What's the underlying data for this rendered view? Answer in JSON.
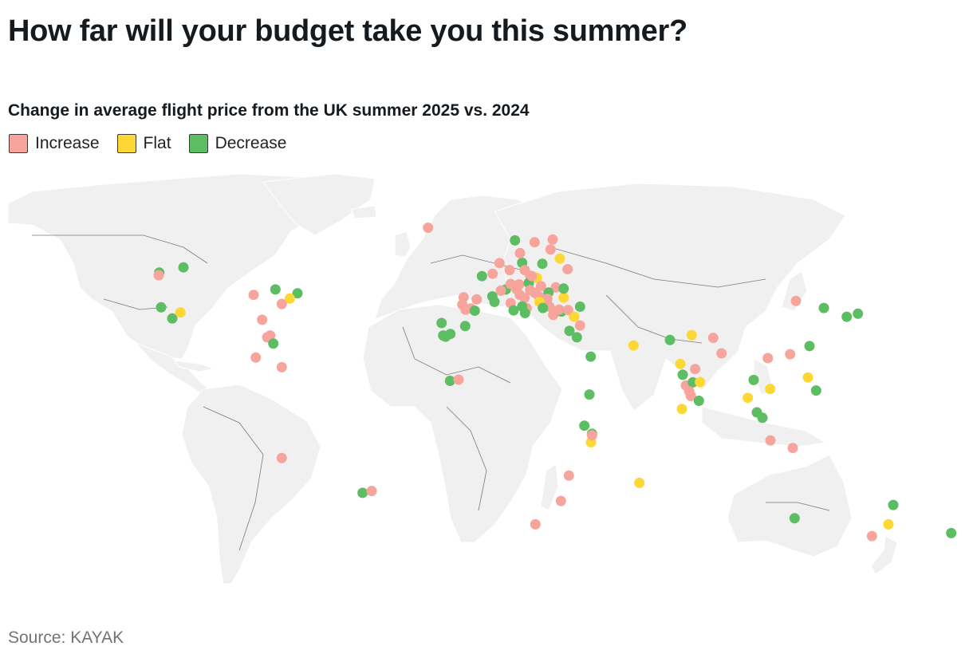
{
  "title": "How far will your budget take you this summer?",
  "subtitle": "Change in average flight price from the UK summer 2025 vs. 2024",
  "legend": [
    {
      "label": "Increase",
      "key": "increase",
      "color": "#f7a59c"
    },
    {
      "label": "Flat",
      "key": "flat",
      "color": "#fdd835"
    },
    {
      "label": "Decrease",
      "key": "decrease",
      "color": "#5cbd62"
    }
  ],
  "source": "Source: KAYAK",
  "map_data": {
    "projection": "equirectangular",
    "lon_range": [
      -180,
      180
    ],
    "lat_range": [
      -57,
      84
    ],
    "destinations": [
      {
        "lon": -22,
        "lat": 64.1,
        "change": "increase"
      },
      {
        "lon": -123.1,
        "lat": 49.3,
        "change": "decrease"
      },
      {
        "lon": -123.3,
        "lat": 48.4,
        "change": "increase"
      },
      {
        "lon": -114,
        "lat": 51,
        "change": "decrease"
      },
      {
        "lon": -122.4,
        "lat": 37.8,
        "change": "decrease"
      },
      {
        "lon": -118.2,
        "lat": 34.1,
        "change": "decrease"
      },
      {
        "lon": -115.1,
        "lat": 36.1,
        "change": "flat"
      },
      {
        "lon": -87.6,
        "lat": 41.9,
        "change": "increase"
      },
      {
        "lon": -79.4,
        "lat": 43.7,
        "change": "decrease"
      },
      {
        "lon": -71.1,
        "lat": 42.4,
        "change": "decrease"
      },
      {
        "lon": -74,
        "lat": 40.7,
        "change": "flat"
      },
      {
        "lon": -77,
        "lat": 38.9,
        "change": "increase"
      },
      {
        "lon": -84.4,
        "lat": 33.7,
        "change": "increase"
      },
      {
        "lon": -81.4,
        "lat": 28.5,
        "change": "increase"
      },
      {
        "lon": -82.5,
        "lat": 27.9,
        "change": "increase"
      },
      {
        "lon": -80.2,
        "lat": 25.8,
        "change": "decrease"
      },
      {
        "lon": -86.8,
        "lat": 21.2,
        "change": "increase"
      },
      {
        "lon": -77,
        "lat": 18,
        "change": "increase"
      },
      {
        "lon": -77,
        "lat": -12,
        "change": "increase"
      },
      {
        "lon": -46.6,
        "lat": -23.5,
        "change": "decrease"
      },
      {
        "lon": -43.2,
        "lat": -22.9,
        "change": "increase"
      },
      {
        "lon": -9.1,
        "lat": 38.7,
        "change": "increase"
      },
      {
        "lon": -8.6,
        "lat": 41.1,
        "change": "increase"
      },
      {
        "lon": -3.7,
        "lat": 40.4,
        "change": "increase"
      },
      {
        "lon": 2.2,
        "lat": 41.4,
        "change": "decrease"
      },
      {
        "lon": -5.9,
        "lat": 37.4,
        "change": "increase"
      },
      {
        "lon": -7.9,
        "lat": 37.0,
        "change": "increase"
      },
      {
        "lon": -4.4,
        "lat": 36.7,
        "change": "decrease"
      },
      {
        "lon": 3.0,
        "lat": 39.6,
        "change": "decrease"
      },
      {
        "lon": -16.3,
        "lat": 28.5,
        "change": "decrease"
      },
      {
        "lon": -15.4,
        "lat": 28.1,
        "change": "decrease"
      },
      {
        "lon": -13.6,
        "lat": 29.0,
        "change": "decrease"
      },
      {
        "lon": -16.9,
        "lat": 32.6,
        "change": "decrease"
      },
      {
        "lon": -8.0,
        "lat": 31.6,
        "change": "decrease"
      },
      {
        "lon": 2.3,
        "lat": 48.9,
        "change": "increase"
      },
      {
        "lon": -1.7,
        "lat": 48.1,
        "change": "decrease"
      },
      {
        "lon": 7.3,
        "lat": 43.7,
        "change": "decrease"
      },
      {
        "lon": 5.4,
        "lat": 43.3,
        "change": "increase"
      },
      {
        "lon": 4.9,
        "lat": 52.4,
        "change": "increase"
      },
      {
        "lon": 8.7,
        "lat": 50.1,
        "change": "increase"
      },
      {
        "lon": 13.4,
        "lat": 52.5,
        "change": "decrease"
      },
      {
        "lon": 12.6,
        "lat": 55.7,
        "change": "increase"
      },
      {
        "lon": 10.7,
        "lat": 59.9,
        "change": "decrease"
      },
      {
        "lon": 18.1,
        "lat": 59.3,
        "change": "increase"
      },
      {
        "lon": 24.9,
        "lat": 60.2,
        "change": "increase"
      },
      {
        "lon": 24.1,
        "lat": 56.9,
        "change": "increase"
      },
      {
        "lon": 21.0,
        "lat": 52.2,
        "change": "decrease"
      },
      {
        "lon": 14.4,
        "lat": 50.1,
        "change": "increase"
      },
      {
        "lon": 16.4,
        "lat": 48.2,
        "change": "increase"
      },
      {
        "lon": 19.0,
        "lat": 47.5,
        "change": "flat"
      },
      {
        "lon": 26.1,
        "lat": 44.4,
        "change": "increase"
      },
      {
        "lon": 23.3,
        "lat": 42.7,
        "change": "decrease"
      },
      {
        "lon": 11.3,
        "lat": 43.8,
        "change": "increase"
      },
      {
        "lon": 12.5,
        "lat": 41.9,
        "change": "increase"
      },
      {
        "lon": 14.3,
        "lat": 40.9,
        "change": "increase"
      },
      {
        "lon": 9.1,
        "lat": 45.5,
        "change": "increase"
      },
      {
        "lon": 12.3,
        "lat": 45.4,
        "change": "increase"
      },
      {
        "lon": 9.1,
        "lat": 39.2,
        "change": "increase"
      },
      {
        "lon": 15.1,
        "lat": 37.5,
        "change": "increase"
      },
      {
        "lon": 14.5,
        "lat": 35.9,
        "change": "decrease"
      },
      {
        "lon": 10.2,
        "lat": 36.8,
        "change": "decrease"
      },
      {
        "lon": 13.4,
        "lat": 38.1,
        "change": "decrease"
      },
      {
        "lon": 15.9,
        "lat": 45.8,
        "change": "decrease"
      },
      {
        "lon": 16.4,
        "lat": 43.5,
        "change": "increase"
      },
      {
        "lon": 18.1,
        "lat": 42.6,
        "change": "increase"
      },
      {
        "lon": 19.8,
        "lat": 41.3,
        "change": "increase"
      },
      {
        "lon": 20.5,
        "lat": 44.8,
        "change": "increase"
      },
      {
        "lon": 17.1,
        "lat": 48.1,
        "change": "increase"
      },
      {
        "lon": 22.9,
        "lat": 40.6,
        "change": "increase"
      },
      {
        "lon": 23.7,
        "lat": 38.0,
        "change": "increase"
      },
      {
        "lon": 25.1,
        "lat": 35.3,
        "change": "increase"
      },
      {
        "lon": 28.2,
        "lat": 36.4,
        "change": "decrease"
      },
      {
        "lon": 25.4,
        "lat": 36.4,
        "change": "increase"
      },
      {
        "lon": 19.9,
        "lat": 39.6,
        "change": "flat"
      },
      {
        "lon": 21.2,
        "lat": 37.6,
        "change": "decrease"
      },
      {
        "lon": 27.3,
        "lat": 37.0,
        "change": "increase"
      },
      {
        "lon": 29.0,
        "lat": 41.0,
        "change": "flat"
      },
      {
        "lon": 30.7,
        "lat": 36.9,
        "change": "increase"
      },
      {
        "lon": 33.0,
        "lat": 34.7,
        "change": "flat"
      },
      {
        "lon": 35.2,
        "lat": 38.0,
        "change": "decrease"
      },
      {
        "lon": 35.2,
        "lat": 31.8,
        "change": "increase"
      },
      {
        "lon": 31.2,
        "lat": 30.0,
        "change": "decrease"
      },
      {
        "lon": 29.0,
        "lat": 44.0,
        "change": "decrease"
      },
      {
        "lon": 30.5,
        "lat": 50.4,
        "change": "increase"
      },
      {
        "lon": 27.6,
        "lat": 53.9,
        "change": "flat"
      },
      {
        "lon": 34.0,
        "lat": 27.9,
        "change": "decrease"
      },
      {
        "lon": 39.2,
        "lat": 21.5,
        "change": "decrease"
      },
      {
        "lon": 38.7,
        "lat": 9.0,
        "change": "decrease"
      },
      {
        "lon": -13.7,
        "lat": 13.5,
        "change": "decrease"
      },
      {
        "lon": -10.5,
        "lat": 13.9,
        "change": "increase"
      },
      {
        "lon": 55.3,
        "lat": 25.2,
        "change": "flat"
      },
      {
        "lon": 73.5,
        "lat": 4.2,
        "change": "flat"
      },
      {
        "lon": 69.0,
        "lat": 27.0,
        "change": "decrease"
      },
      {
        "lon": 77.2,
        "lat": 28.6,
        "change": "flat"
      },
      {
        "lon": 72.9,
        "lat": 19.1,
        "change": "flat"
      },
      {
        "lon": 73.8,
        "lat": 15.5,
        "change": "decrease"
      },
      {
        "lon": 75.0,
        "lat": 12.0,
        "change": "increase"
      },
      {
        "lon": 78.5,
        "lat": 17.4,
        "change": "increase"
      },
      {
        "lon": 77.6,
        "lat": 13.0,
        "change": "decrease"
      },
      {
        "lon": 80.3,
        "lat": 13.1,
        "change": "flat"
      },
      {
        "lon": 76.3,
        "lat": 10.0,
        "change": "increase"
      },
      {
        "lon": 76.9,
        "lat": 8.5,
        "change": "increase"
      },
      {
        "lon": 79.9,
        "lat": 6.9,
        "change": "decrease"
      },
      {
        "lon": 85.3,
        "lat": 27.7,
        "change": "increase"
      },
      {
        "lon": 88.4,
        "lat": 22.6,
        "change": "increase"
      },
      {
        "lon": 100.5,
        "lat": 13.8,
        "change": "decrease"
      },
      {
        "lon": 98.3,
        "lat": 7.9,
        "change": "flat"
      },
      {
        "lon": 105.8,
        "lat": 21.0,
        "change": "increase"
      },
      {
        "lon": 106.7,
        "lat": 10.8,
        "change": "flat"
      },
      {
        "lon": 101.7,
        "lat": 3.1,
        "change": "decrease"
      },
      {
        "lon": 103.8,
        "lat": 1.3,
        "change": "decrease"
      },
      {
        "lon": 106.8,
        "lat": -6.2,
        "change": "increase"
      },
      {
        "lon": 115.2,
        "lat": -8.7,
        "change": "increase"
      },
      {
        "lon": 114.2,
        "lat": 22.3,
        "change": "increase"
      },
      {
        "lon": 121.5,
        "lat": 25.0,
        "change": "decrease"
      },
      {
        "lon": 120.9,
        "lat": 14.6,
        "change": "flat"
      },
      {
        "lon": 124.0,
        "lat": 10.3,
        "change": "decrease"
      },
      {
        "lon": 116.4,
        "lat": 39.9,
        "change": "increase"
      },
      {
        "lon": 126.9,
        "lat": 37.6,
        "change": "decrease"
      },
      {
        "lon": 135.5,
        "lat": 34.7,
        "change": "decrease"
      },
      {
        "lon": 139.7,
        "lat": 35.7,
        "change": "decrease"
      },
      {
        "lon": 36.8,
        "lat": -1.3,
        "change": "decrease"
      },
      {
        "lon": 39.3,
        "lat": -6.8,
        "change": "flat"
      },
      {
        "lon": 39.7,
        "lat": -4.0,
        "change": "decrease"
      },
      {
        "lon": 39.7,
        "lat": -4.5,
        "change": "increase"
      },
      {
        "lon": 31.0,
        "lat": -17.8,
        "change": "increase"
      },
      {
        "lon": 28.0,
        "lat": -26.2,
        "change": "increase"
      },
      {
        "lon": 18.4,
        "lat": -33.9,
        "change": "increase"
      },
      {
        "lon": 57.5,
        "lat": -20.2,
        "change": "flat"
      },
      {
        "lon": 115.9,
        "lat": -31.9,
        "change": "decrease"
      },
      {
        "lon": 153.0,
        "lat": -27.5,
        "change": "decrease"
      },
      {
        "lon": 151.2,
        "lat": -33.9,
        "change": "flat"
      },
      {
        "lon": 145.0,
        "lat": -37.8,
        "change": "increase"
      },
      {
        "lon": 174.8,
        "lat": -36.8,
        "change": "decrease"
      }
    ]
  }
}
